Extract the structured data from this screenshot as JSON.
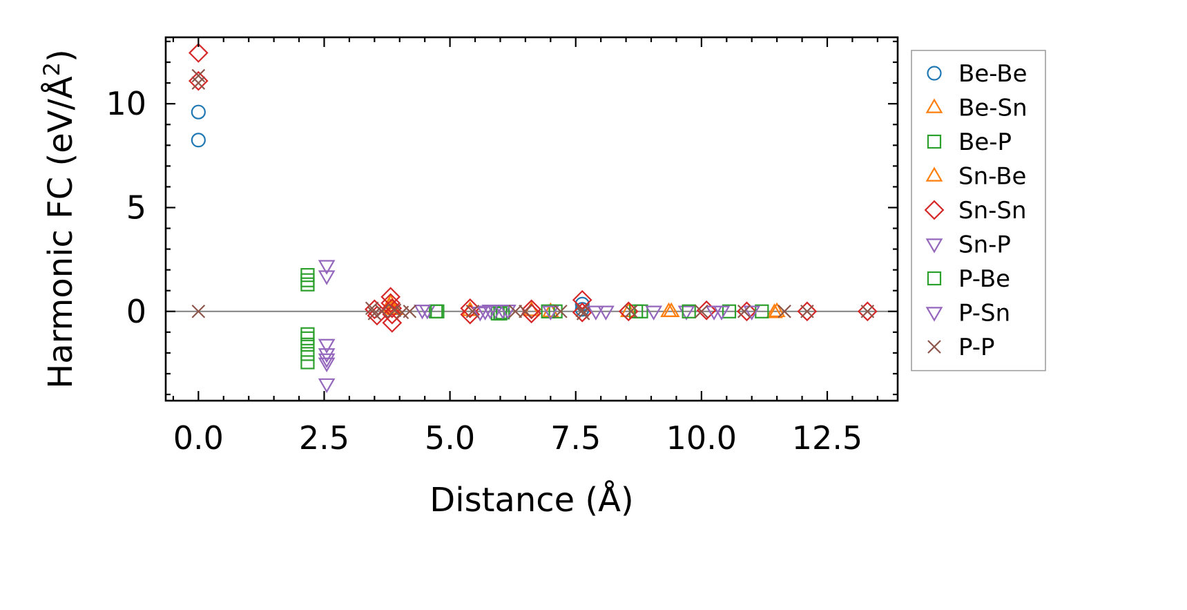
{
  "chart_data": {
    "type": "scatter",
    "title": "",
    "xlabel": "Distance (Å)",
    "ylabel_main": "Harmonic FC (eV/Å",
    "ylabel_sup": "2",
    "ylabel_close": ")",
    "xlim": [
      -0.65,
      13.9
    ],
    "ylim": [
      -4.3,
      13.2
    ],
    "xticks": [
      0.0,
      2.5,
      5.0,
      7.5,
      10.0,
      12.5
    ],
    "xtick_labels": [
      "0.0",
      "2.5",
      "5.0",
      "7.5",
      "10.0",
      "12.5"
    ],
    "yticks": [
      0,
      5,
      10
    ],
    "ytick_labels": [
      "0",
      "5",
      "10"
    ],
    "grid": false,
    "zero_line": true,
    "legend_position": "outside-right",
    "series": [
      {
        "name": "Be-Be",
        "marker": "circle",
        "color": "#1f77b4",
        "points": [
          [
            0.0,
            9.6
          ],
          [
            0.0,
            8.25
          ],
          [
            7.63,
            0.35
          ],
          [
            7.63,
            0.1
          ]
        ]
      },
      {
        "name": "Be-Sn",
        "marker": "triangle-up",
        "color": "#ff7f0e",
        "points": [
          [
            3.82,
            0.4
          ],
          [
            3.85,
            0.15
          ],
          [
            6.62,
            0.05
          ],
          [
            8.55,
            0.0
          ],
          [
            9.35,
            0.0
          ],
          [
            11.5,
            0.0
          ]
        ]
      },
      {
        "name": "Be-P",
        "marker": "square",
        "color": "#2ca02c",
        "points": [
          [
            2.17,
            1.75
          ],
          [
            2.17,
            1.5
          ],
          [
            2.17,
            1.3
          ],
          [
            2.17,
            -1.1
          ],
          [
            2.17,
            -1.3
          ],
          [
            2.17,
            -1.6
          ],
          [
            2.17,
            -2.05
          ],
          [
            2.17,
            -2.45
          ],
          [
            4.72,
            0.0
          ],
          [
            5.95,
            -0.1
          ],
          [
            6.05,
            -0.05
          ],
          [
            7.1,
            0.0
          ],
          [
            8.7,
            0.0
          ],
          [
            10.55,
            0.0
          ]
        ]
      },
      {
        "name": "Sn-Be",
        "marker": "triangle-up",
        "color": "#ff7f0e",
        "points": [
          [
            3.8,
            0.25
          ],
          [
            3.9,
            0.1
          ],
          [
            5.4,
            0.05
          ],
          [
            7.0,
            0.0
          ],
          [
            9.4,
            0.0
          ],
          [
            11.45,
            -0.05
          ]
        ]
      },
      {
        "name": "Sn-Sn",
        "marker": "diamond",
        "color": "#d62728",
        "points": [
          [
            0.0,
            12.45
          ],
          [
            0.0,
            11.1
          ],
          [
            3.5,
            0.1
          ],
          [
            3.55,
            -0.2
          ],
          [
            3.82,
            0.7
          ],
          [
            3.82,
            0.4
          ],
          [
            3.85,
            0.15
          ],
          [
            3.85,
            -0.15
          ],
          [
            3.85,
            -0.55
          ],
          [
            5.4,
            0.15
          ],
          [
            5.4,
            -0.15
          ],
          [
            6.62,
            0.1
          ],
          [
            6.62,
            -0.1
          ],
          [
            7.63,
            0.55
          ],
          [
            7.63,
            -0.05
          ],
          [
            8.55,
            0.0
          ],
          [
            10.1,
            0.05
          ],
          [
            10.9,
            0.0
          ],
          [
            12.1,
            0.0
          ],
          [
            13.3,
            0.0
          ]
        ]
      },
      {
        "name": "Sn-P",
        "marker": "triangle-down",
        "color": "#9467bd",
        "points": [
          [
            2.55,
            2.2
          ],
          [
            2.55,
            1.7
          ],
          [
            2.55,
            -1.6
          ],
          [
            2.55,
            -2.05
          ],
          [
            2.55,
            -2.3
          ],
          [
            2.55,
            -2.5
          ],
          [
            2.55,
            -3.5
          ],
          [
            4.55,
            0.05
          ],
          [
            5.7,
            0.0
          ],
          [
            5.9,
            0.05
          ],
          [
            6.05,
            0.05
          ],
          [
            7.9,
            0.0
          ],
          [
            9.7,
            0.0
          ],
          [
            10.4,
            0.0
          ]
        ]
      },
      {
        "name": "P-Be",
        "marker": "square",
        "color": "#2ca02c",
        "points": [
          [
            4.75,
            0.0
          ],
          [
            6.0,
            -0.1
          ],
          [
            6.95,
            0.0
          ],
          [
            8.8,
            0.0
          ],
          [
            9.75,
            0.0
          ],
          [
            11.2,
            0.0
          ]
        ]
      },
      {
        "name": "P-Sn",
        "marker": "triangle-down",
        "color": "#9467bd",
        "points": [
          [
            4.45,
            0.05
          ],
          [
            5.6,
            -0.05
          ],
          [
            5.8,
            0.05
          ],
          [
            6.15,
            0.05
          ],
          [
            7.0,
            0.0
          ],
          [
            8.1,
            0.0
          ],
          [
            9.05,
            0.0
          ],
          [
            10.25,
            0.0
          ],
          [
            11.0,
            0.0
          ]
        ]
      },
      {
        "name": "P-P",
        "marker": "x",
        "color": "#8c564b",
        "points": [
          [
            0.0,
            11.35
          ],
          [
            0.0,
            11.0
          ],
          [
            0.0,
            0.0
          ],
          [
            3.45,
            0.15
          ],
          [
            3.5,
            -0.1
          ],
          [
            3.65,
            0.0
          ],
          [
            3.9,
            0.05
          ],
          [
            4.05,
            -0.05
          ],
          [
            4.2,
            0.0
          ],
          [
            5.45,
            0.0
          ],
          [
            6.3,
            0.0
          ],
          [
            6.5,
            0.0
          ],
          [
            7.2,
            0.0
          ],
          [
            7.63,
            0.05
          ],
          [
            7.65,
            -0.1
          ],
          [
            8.6,
            0.0
          ],
          [
            10.0,
            0.0
          ],
          [
            10.85,
            0.0
          ],
          [
            11.65,
            0.0
          ],
          [
            12.1,
            0.0
          ],
          [
            13.3,
            0.0
          ]
        ]
      }
    ]
  }
}
